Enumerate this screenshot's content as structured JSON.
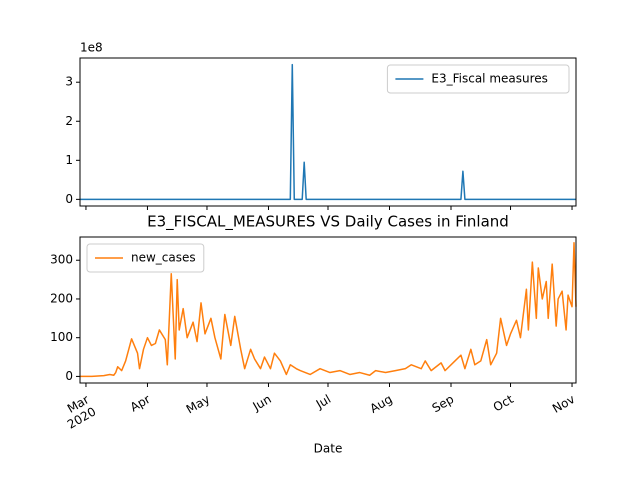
{
  "chart_data": [
    {
      "type": "line",
      "y_offset_label": "1e8",
      "x": [
        -3,
        103,
        104,
        105,
        109,
        110,
        111,
        189,
        190,
        191,
        247
      ],
      "series": [
        {
          "name": "E3_Fiscal measures",
          "color": "#1f77b4",
          "values": [
            0,
            0,
            3.45,
            0,
            0,
            0.95,
            0,
            0,
            0.72,
            0,
            0
          ]
        }
      ],
      "xlim": [
        -3,
        247
      ],
      "ylim": [
        -0.17,
        3.62
      ],
      "yticks": [
        0,
        1,
        2,
        3
      ],
      "legend": "upper right"
    },
    {
      "type": "line",
      "title": "E3_FISCAL_MEASURES VS Daily Cases in Finland",
      "xlabel": "Date",
      "x": [
        -3,
        0,
        3,
        6,
        9,
        12,
        14,
        15,
        16,
        18,
        20,
        23,
        26,
        27,
        29,
        31,
        33,
        35,
        37,
        40,
        41,
        43,
        45,
        46,
        47,
        49,
        51,
        54,
        56,
        58,
        60,
        63,
        65,
        68,
        70,
        73,
        75,
        78,
        80,
        83,
        85,
        88,
        90,
        93,
        95,
        98,
        101,
        103,
        106,
        108,
        113,
        118,
        123,
        128,
        133,
        138,
        143,
        146,
        151,
        156,
        161,
        164,
        169,
        171,
        174,
        179,
        181,
        186,
        189,
        191,
        194,
        196,
        199,
        202,
        204,
        207,
        209,
        212,
        214,
        217,
        219,
        222,
        223,
        225,
        227,
        228,
        230,
        232,
        233,
        235,
        237,
        238,
        240,
        242,
        243,
        245,
        246,
        247
      ],
      "series": [
        {
          "name": "new_cases",
          "color": "#ff7f0e",
          "values": [
            0,
            0,
            0,
            1,
            2,
            5,
            3,
            10,
            25,
            15,
            40,
            97,
            60,
            20,
            70,
            100,
            80,
            85,
            120,
            95,
            30,
            265,
            45,
            250,
            120,
            175,
            100,
            140,
            90,
            190,
            110,
            150,
            100,
            45,
            160,
            80,
            155,
            70,
            20,
            70,
            45,
            20,
            50,
            20,
            60,
            40,
            5,
            30,
            20,
            15,
            5,
            20,
            10,
            15,
            5,
            10,
            3,
            15,
            10,
            15,
            20,
            30,
            20,
            40,
            15,
            35,
            15,
            40,
            55,
            20,
            70,
            30,
            40,
            95,
            30,
            60,
            150,
            80,
            110,
            145,
            100,
            225,
            120,
            295,
            150,
            280,
            200,
            245,
            150,
            290,
            130,
            200,
            220,
            120,
            210,
            180,
            345,
            180
          ]
        }
      ],
      "xlim": [
        -3,
        247
      ],
      "ylim": [
        -17,
        360
      ],
      "yticks": [
        0,
        100,
        200,
        300
      ],
      "xticks": [
        {
          "value": 0,
          "label": "Mar 2020"
        },
        {
          "value": 31,
          "label": "Apr"
        },
        {
          "value": 61,
          "label": "May"
        },
        {
          "value": 92,
          "label": "Jun"
        },
        {
          "value": 122,
          "label": "Jul"
        },
        {
          "value": 153,
          "label": "Aug"
        },
        {
          "value": 184,
          "label": "Sep"
        },
        {
          "value": 214,
          "label": "Oct"
        },
        {
          "value": 245,
          "label": "Nov"
        }
      ],
      "legend": "upper left"
    }
  ]
}
